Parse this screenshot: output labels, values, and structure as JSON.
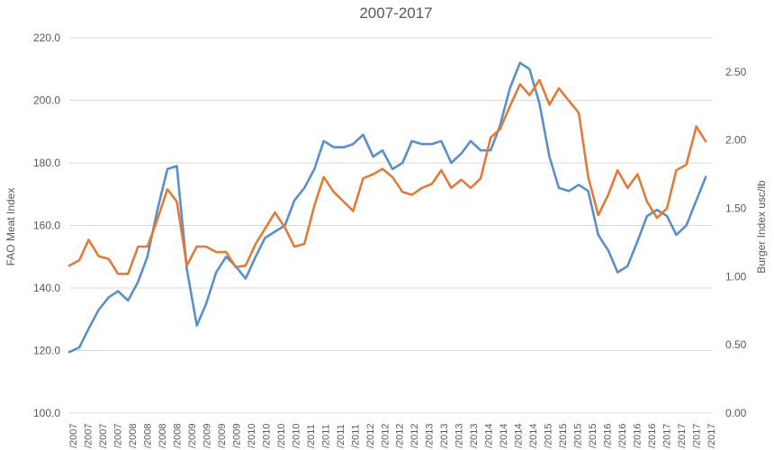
{
  "chart_data": {
    "type": "line",
    "title": "2007-2017",
    "ylabel_left": "FAO Meat Index",
    "ylabel_right": "Burger Index usc/lb",
    "ylim_left": [
      100,
      220
    ],
    "yticks_left": [
      "100.0",
      "120.0",
      "140.0",
      "160.0",
      "180.0",
      "200.0",
      "220.0"
    ],
    "ylim_right": [
      0,
      2.75
    ],
    "yticks_right": [
      "0.00",
      "0.50",
      "1.00",
      "1.50",
      "2.00",
      "2.50"
    ],
    "grid": true,
    "x_range": [
      2007.0,
      2017.95
    ],
    "x_tick_labels": [
      "2007",
      "2007",
      "2007",
      "2007",
      "2008",
      "2008",
      "2008",
      "2008",
      "2009",
      "2009",
      "2009",
      "2009",
      "2010",
      "2010",
      "2010",
      "2010",
      "2011",
      "2011",
      "2011",
      "2011",
      "2012",
      "2012",
      "2012",
      "2012",
      "2013",
      "2013",
      "2013",
      "2013",
      "2014",
      "2014",
      "2014",
      "2014",
      "2015",
      "2015",
      "2015",
      "2015",
      "2016",
      "2016",
      "2016",
      "2016",
      "2017",
      "2017",
      "2017",
      "2017"
    ],
    "series": [
      {
        "name": "",
        "axis": "left",
        "color": "#5b8fc9",
        "x": [
          2007.0,
          2007.17,
          2007.33,
          2007.5,
          2007.67,
          2007.83,
          2008.0,
          2008.17,
          2008.33,
          2008.5,
          2008.67,
          2008.83,
          2009.0,
          2009.17,
          2009.33,
          2009.5,
          2009.67,
          2009.83,
          2010.0,
          2010.17,
          2010.33,
          2010.5,
          2010.67,
          2010.83,
          2011.0,
          2011.17,
          2011.33,
          2011.5,
          2011.67,
          2011.83,
          2012.0,
          2012.17,
          2012.33,
          2012.5,
          2012.67,
          2012.83,
          2013.0,
          2013.17,
          2013.33,
          2013.5,
          2013.67,
          2013.83,
          2014.0,
          2014.17,
          2014.33,
          2014.5,
          2014.67,
          2014.83,
          2015.0,
          2015.17,
          2015.33,
          2015.5,
          2015.67,
          2015.83,
          2016.0,
          2016.17,
          2016.33,
          2016.5,
          2016.67,
          2016.83,
          2017.0,
          2017.17,
          2017.33,
          2017.5,
          2017.67,
          2017.83
        ],
        "y": [
          119.5,
          121,
          127,
          133,
          137,
          139,
          136,
          142,
          150,
          165,
          178,
          179,
          146,
          128,
          135,
          145,
          150,
          147,
          143,
          150,
          156,
          158,
          160,
          168,
          172,
          178,
          187,
          185,
          185,
          186,
          189,
          182,
          184,
          178,
          180,
          187,
          186,
          186,
          187,
          180,
          183,
          187,
          184,
          184,
          192,
          204,
          212,
          210,
          199,
          182,
          172,
          171,
          173,
          171,
          157,
          152,
          145,
          147,
          155,
          163,
          165,
          163,
          157,
          160,
          168,
          175.5
        ]
      },
      {
        "name": "",
        "axis": "right",
        "color": "#e07b39",
        "x": [
          2007.0,
          2007.17,
          2007.33,
          2007.5,
          2007.67,
          2007.83,
          2008.0,
          2008.17,
          2008.33,
          2008.5,
          2008.67,
          2008.83,
          2009.0,
          2009.17,
          2009.33,
          2009.5,
          2009.67,
          2009.83,
          2010.0,
          2010.17,
          2010.33,
          2010.5,
          2010.67,
          2010.83,
          2011.0,
          2011.17,
          2011.33,
          2011.5,
          2011.67,
          2011.83,
          2012.0,
          2012.17,
          2012.33,
          2012.5,
          2012.67,
          2012.83,
          2013.0,
          2013.17,
          2013.33,
          2013.5,
          2013.67,
          2013.83,
          2014.0,
          2014.17,
          2014.33,
          2014.5,
          2014.67,
          2014.83,
          2015.0,
          2015.17,
          2015.33,
          2015.5,
          2015.67,
          2015.83,
          2016.0,
          2016.17,
          2016.33,
          2016.5,
          2016.67,
          2016.83,
          2017.0,
          2017.17,
          2017.33,
          2017.5,
          2017.67,
          2017.83
        ],
        "y": [
          1.08,
          1.12,
          1.27,
          1.15,
          1.13,
          1.02,
          1.02,
          1.22,
          1.22,
          1.42,
          1.64,
          1.55,
          1.08,
          1.22,
          1.22,
          1.18,
          1.18,
          1.07,
          1.08,
          1.24,
          1.35,
          1.47,
          1.36,
          1.22,
          1.24,
          1.52,
          1.73,
          1.62,
          1.55,
          1.48,
          1.72,
          1.75,
          1.79,
          1.73,
          1.62,
          1.6,
          1.65,
          1.68,
          1.78,
          1.65,
          1.71,
          1.65,
          1.72,
          2.02,
          2.08,
          2.25,
          2.41,
          2.33,
          2.44,
          2.26,
          2.38,
          2.29,
          2.2,
          1.73,
          1.45,
          1.6,
          1.78,
          1.65,
          1.75,
          1.55,
          1.43,
          1.5,
          1.78,
          1.82,
          2.1,
          1.99
        ]
      }
    ]
  }
}
